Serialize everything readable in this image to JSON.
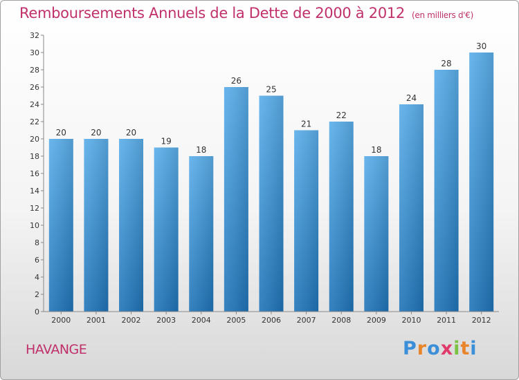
{
  "title": "Remboursements Annuels de la Dette de 2000 à 2012",
  "unit": "(en milliers d'€)",
  "town": "HAVANGE",
  "brand": {
    "text": "Proxiti",
    "letters": [
      "P",
      "r",
      "o",
      "x",
      "i",
      "t",
      "i"
    ],
    "colors": [
      "#3a8fd8",
      "#e8852a",
      "#3a8fd8",
      "#e03a6a",
      "#7cc242",
      "#e8852a",
      "#3a8fd8"
    ]
  },
  "colors": {
    "bar_top": "#5aaeea",
    "bar_bottom": "#1f74b8",
    "title": "#c0306a"
  },
  "chart_data": {
    "type": "bar",
    "categories": [
      "2000",
      "2001",
      "2002",
      "2003",
      "2004",
      "2005",
      "2006",
      "2007",
      "2008",
      "2009",
      "2010",
      "2011",
      "2012"
    ],
    "values": [
      20,
      20,
      20,
      19,
      18,
      26,
      25,
      21,
      22,
      18,
      24,
      28,
      30
    ],
    "ylim": [
      0,
      32
    ],
    "yticks": [
      0,
      2,
      4,
      6,
      8,
      10,
      12,
      14,
      16,
      18,
      20,
      22,
      24,
      26,
      28,
      30,
      32
    ],
    "grid": false
  }
}
